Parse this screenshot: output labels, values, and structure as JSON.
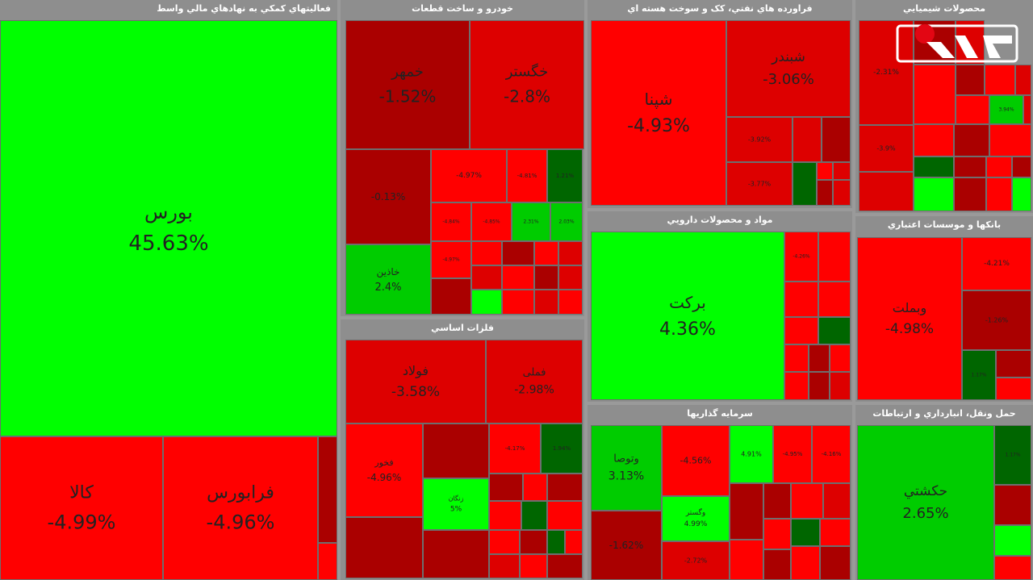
{
  "colors": {
    "bright_green": "#00ff00",
    "green": "#00cc00",
    "dark_green": "#006600",
    "bright_red": "#ff0000",
    "red": "#dd0000",
    "dark_red": "#aa0000"
  },
  "chart_data": {
    "type": "heatmap",
    "sectors": [
      {
        "title": "فعالیتهاي کمکي به نهادهاي مالي واسط",
        "stocks": [
          {
            "name": "بورس",
            "value": 45.63
          },
          {
            "name": "کالا",
            "value": -4.99
          },
          {
            "name": "فرابورس",
            "value": -4.96
          }
        ]
      },
      {
        "title": "خودرو و ساخت قطعات",
        "stocks": [
          {
            "name": "خمهر",
            "value": -1.52
          },
          {
            "name": "خگستر",
            "value": -2.8
          },
          {
            "name": "خاذین",
            "value": 2.4
          },
          {
            "name": "",
            "value": -0.13
          },
          {
            "name": "",
            "value": -4.97
          },
          {
            "name": "",
            "value": -4.81
          },
          {
            "name": "",
            "value": 1.21
          },
          {
            "name": "",
            "value": -4.84
          },
          {
            "name": "",
            "value": -4.85
          },
          {
            "name": "",
            "value": 2.31
          },
          {
            "name": "",
            "value": 2.03
          },
          {
            "name": "",
            "value": -4.97
          }
        ]
      },
      {
        "title": "فراورده هاي نفتي، کک و سوخت هسته اي",
        "stocks": [
          {
            "name": "شپنا",
            "value": -4.93
          },
          {
            "name": "شبندر",
            "value": -3.06
          },
          {
            "name": "",
            "value": -3.92
          },
          {
            "name": "",
            "value": -3.77
          }
        ]
      },
      {
        "title": "محصولات شيميايي",
        "stocks": [
          {
            "name": "",
            "value": -2.31
          },
          {
            "name": "",
            "value": -3.9
          },
          {
            "name": "",
            "value": 3.94
          }
        ]
      },
      {
        "title": "مواد و محصولات دارويي",
        "stocks": [
          {
            "name": "برکت",
            "value": 4.36
          },
          {
            "name": "",
            "value": -4.26
          }
        ]
      },
      {
        "title": "بانکها و موسسات اعتباري",
        "stocks": [
          {
            "name": "وبملت",
            "value": -4.98
          },
          {
            "name": "",
            "value": -4.21
          },
          {
            "name": "",
            "value": -1.26
          },
          {
            "name": "",
            "value": 1.17
          }
        ]
      },
      {
        "title": "فلزات اساسي",
        "stocks": [
          {
            "name": "فولاد",
            "value": -3.58
          },
          {
            "name": "فملی",
            "value": -2.98
          },
          {
            "name": "فخور",
            "value": -4.96
          },
          {
            "name": "زنگان",
            "value": 5
          },
          {
            "name": "",
            "value": -4.17
          },
          {
            "name": "",
            "value": 1.94
          }
        ]
      },
      {
        "title": "سرمايه گذاريها",
        "stocks": [
          {
            "name": "وتوصا",
            "value": 3.13
          },
          {
            "name": "",
            "value": -4.56
          },
          {
            "name": "",
            "value": 4.91
          },
          {
            "name": "",
            "value": -4.95
          },
          {
            "name": "",
            "value": -4.16
          },
          {
            "name": "وگستر",
            "value": 4.99
          },
          {
            "name": "",
            "value": -1.62
          },
          {
            "name": "",
            "value": -2.72
          }
        ]
      },
      {
        "title": "حمل ونقل، انبارداري و ارتباطات",
        "stocks": [
          {
            "name": "حکشتي",
            "value": 2.65
          },
          {
            "name": "",
            "value": 1.17
          }
        ]
      }
    ]
  }
}
